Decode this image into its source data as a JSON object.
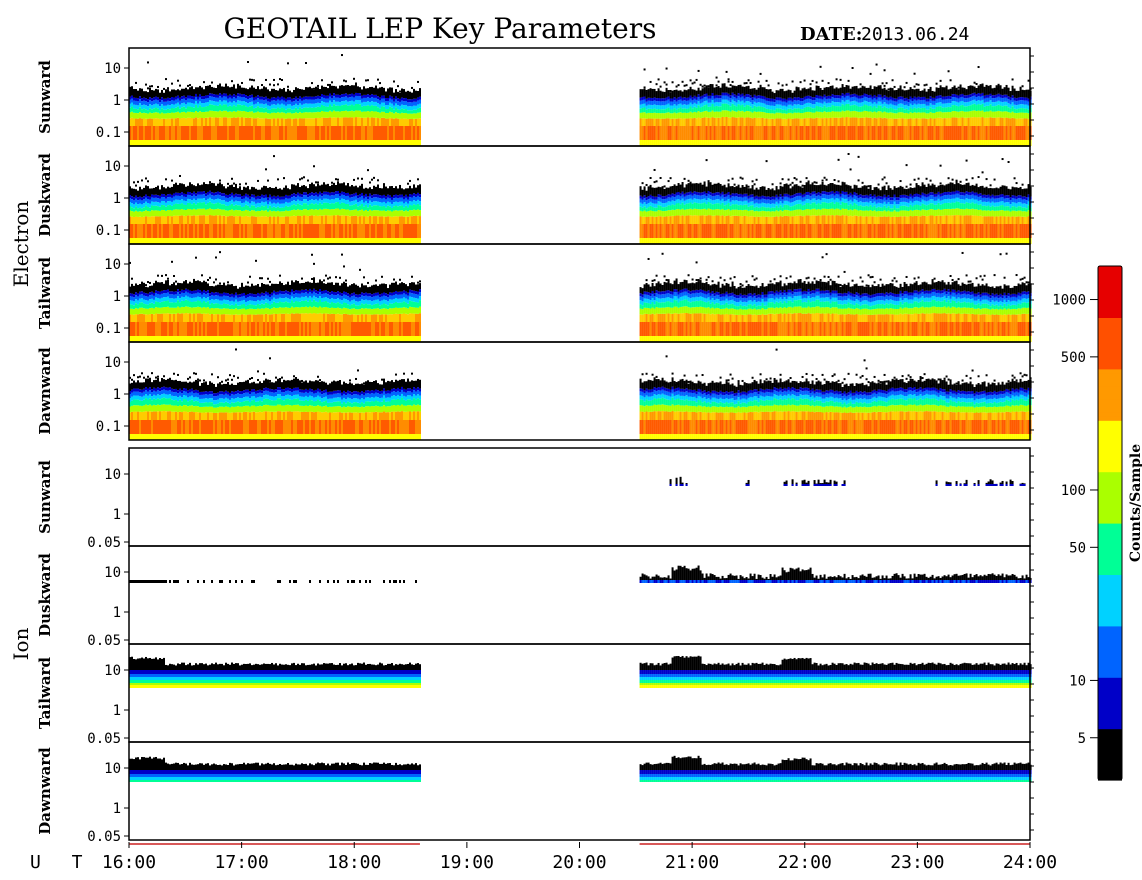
{
  "title": "GEOTAIL LEP Key Parameters",
  "date_label": "DATE:",
  "date_value": "2013.06.24",
  "colors": {
    "electron_scale": [
      "#ffff00",
      "#ff9900",
      "#ff5a00"
    ],
    "spectrum": [
      "#000000",
      "#0000c8",
      "#0064ff",
      "#00d2ff",
      "#00ff96",
      "#aaff00",
      "#ffff00",
      "#ff9900",
      "#ff5000",
      "#e60000"
    ]
  },
  "chart_data": {
    "type": "heatmap",
    "x_label": "U T",
    "x_ticks": [
      "16:00",
      "17:00",
      "18:00",
      "19:00",
      "20:00",
      "21:00",
      "22:00",
      "23:00",
      "24:00"
    ],
    "x_range": [
      "16:00",
      "24:00"
    ],
    "data_gap": [
      "18:35",
      "20:32"
    ],
    "groups": [
      {
        "name": "Electron",
        "y_ticks": [
          "10",
          "1",
          "0.1"
        ],
        "panels": [
          "Sunward",
          "Duskward",
          "Tailward",
          "Dawnward"
        ]
      },
      {
        "name": "Ion",
        "y_ticks": [
          "10",
          "1",
          "0.05"
        ],
        "panels": [
          "Sunward",
          "Duskward",
          "Tailward",
          "Dawnward"
        ]
      }
    ],
    "colorbar": {
      "label": "Counts/Sample",
      "scale": "log",
      "ticks": [
        "1000",
        "500",
        "100",
        "50",
        "10",
        "5"
      ],
      "tick_values": [
        1000,
        500,
        100,
        50,
        10,
        5
      ],
      "range": [
        3,
        1500
      ]
    }
  }
}
